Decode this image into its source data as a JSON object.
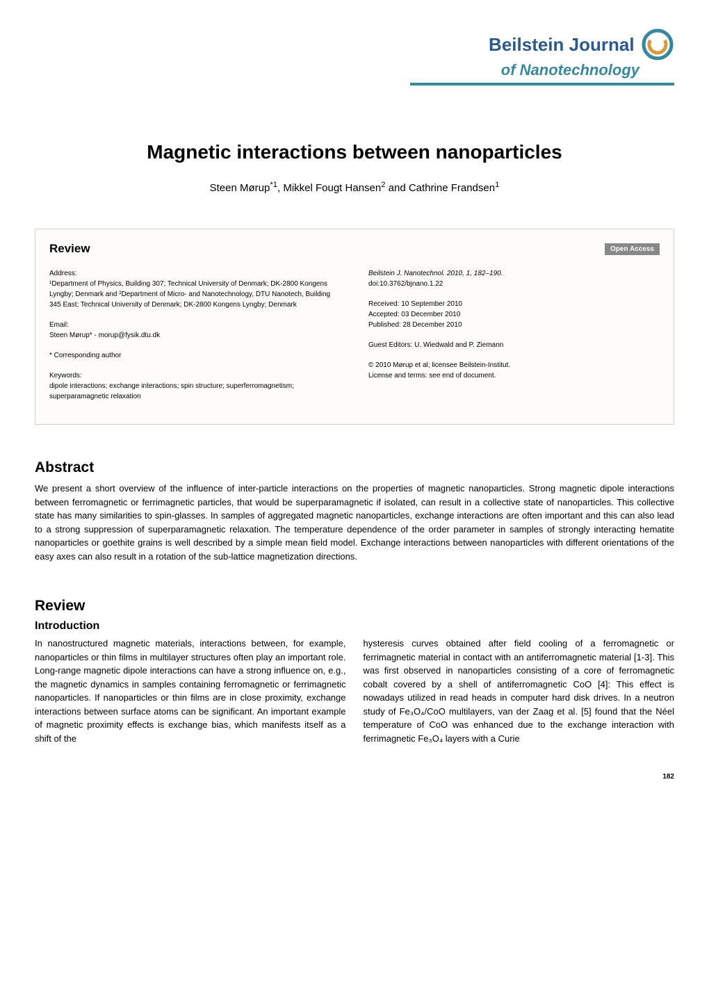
{
  "journal": {
    "name": "Beilstein Journal",
    "subtitle": "of Nanotechnology",
    "logo_outer_color": "#37879e",
    "logo_inner_color": "#d69a3f",
    "underline_color": "#37879e"
  },
  "paper": {
    "title": "Magnetic interactions between nanoparticles",
    "authors_html": "Steen Mørup<sup>*1</sup>, Mikkel Fougt Hansen<sup>2</sup> and Cathrine Frandsen<sup>1</sup>"
  },
  "metadata": {
    "review_label": "Review",
    "open_access": "Open Access",
    "address_label": "Address:",
    "address_text": "¹Department of Physics, Building 307; Technical University of Denmark; DK-2800 Kongens Lyngby; Denmark and ²Department of Micro- and Nanotechnology, DTU Nanotech, Building 345 East; Technical University of Denmark; DK-2800 Kongens Lyngby; Denmark",
    "email_label": "Email:",
    "email_text": "Steen Mørup* - morup@fysik.dtu.dk",
    "corresponding": "* Corresponding author",
    "keywords_label": "Keywords:",
    "keywords_text": "dipole interactions; exchange interactions; spin structure; superferromagnetism; superparamagnetic relaxation",
    "citation": "Beilstein J. Nanotechnol. 2010, 1, 182–190.",
    "doi": "doi:10.3762/bjnano.1.22",
    "received": "Received: 10 September 2010",
    "accepted": "Accepted: 03 December 2010",
    "published": "Published: 28 December 2010",
    "guest_editors": "Guest Editors: U. Wiedwald and P. Ziemann",
    "license1": "© 2010 Mørup et al; licensee Beilstein-Institut.",
    "license2": "License and terms: see end of document."
  },
  "abstract": {
    "heading": "Abstract",
    "text": "We present a short overview of the influence of inter-particle interactions on the properties of magnetic nanoparticles. Strong magnetic dipole interactions between ferromagnetic or ferrimagnetic particles, that would be superparamagnetic if isolated, can result in a collective state of nanoparticles. This collective state has many similarities to spin-glasses. In samples of aggregated magnetic nanoparticles, exchange interactions are often important and this can also lead to a strong suppression of superparamagnetic relaxation. The temperature dependence of the order parameter in samples of strongly interacting hematite nanoparticles or goethite grains is well described by a simple mean field model. Exchange interactions between nanoparticles with different orientations of the easy axes can also result in a rotation of the sub-lattice magnetization directions."
  },
  "body": {
    "review_heading": "Review",
    "intro_heading": "Introduction",
    "col1": "In nanostructured magnetic materials, interactions between, for example, nanoparticles or thin films in multilayer structures often play an important role. Long-range magnetic dipole interactions can have a strong influence on, e.g., the magnetic dynamics in samples containing ferromagnetic or ferrimagnetic nanoparticles. If nanoparticles or thin films are in close proximity, exchange interactions between surface atoms can be significant. An important example of magnetic proximity effects is exchange bias, which manifests itself as a shift of the",
    "col2": "hysteresis curves obtained after field cooling of a ferromagnetic or ferrimagnetic material in contact with an antiferromagnetic material [1-3]. This was first observed in nanoparticles consisting of a core of ferromagnetic cobalt covered by a shell of antiferromagnetic CoO [4]: This effect is nowadays utilized in read heads in computer hard disk drives. In a neutron study of Fe₃O₄/CoO multilayers, van der Zaag et al. [5] found that the Néel temperature of CoO was enhanced due to the exchange interaction with ferrimagnetic Fe₃O₄ layers with a Curie"
  },
  "page_number": "182",
  "colors": {
    "box_border": "#d5cfc5",
    "box_bg": "#fdfcfa",
    "badge_bg": "#888888",
    "title_color": "#2b5a8c"
  }
}
